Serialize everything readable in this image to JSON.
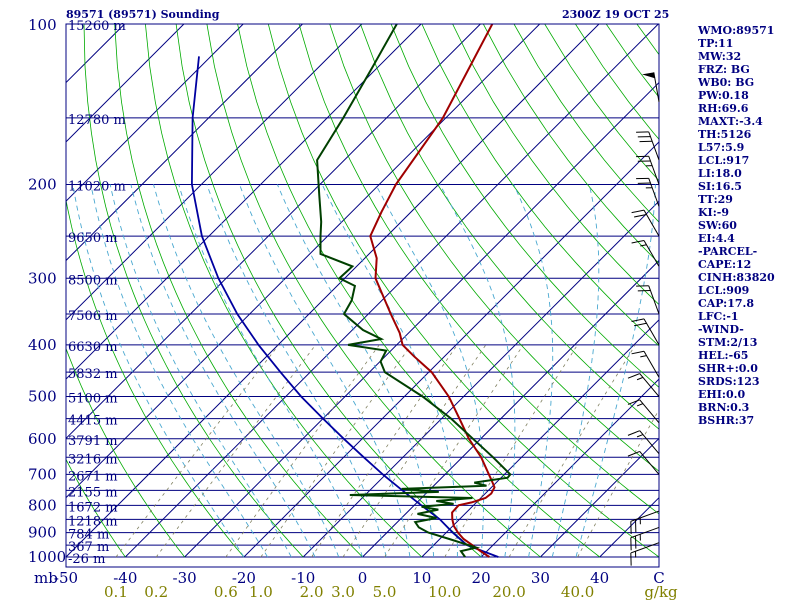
{
  "header": {
    "station_title": "89571 (89571) Sounding",
    "time_label": "2300Z 19 OCT 25"
  },
  "indices": [
    "WMO:89571",
    "TP:11",
    "MW:32",
    "FRZ: BG",
    "WB0: BG",
    "PW:0.18",
    "RH:69.6",
    "MAXT:-3.4",
    "TH:5126",
    "L57:5.9",
    "LCL:917",
    "LI:18.0",
    "SI:16.5",
    "TT:29",
    "KI:-9",
    "SW:60",
    "EI:4.4",
    "-PARCEL-",
    "CAPE:12",
    "CINH:83820",
    "LCL:909",
    "CAP:17.8",
    "LFC:-1",
    "-WIND-",
    "STM:2/13",
    "HEL:-65",
    "SHR+:0.0",
    "SRDS:123",
    "EHI:0.0",
    "BRN:0.3",
    "BSHR:37"
  ],
  "colors": {
    "isobar": "#000080",
    "isotherm": "#000080",
    "dry_adiabat": "#00aa00",
    "moist_adiabat": "#4aa8d0",
    "mixing_ratio": "#808060",
    "temperature": "#a00000",
    "dewpoint": "#004000",
    "parcel": "#0000a0",
    "frame": "#000080",
    "text": "#000080",
    "mixing_label": "#808000"
  },
  "chart_data": {
    "type": "skew-t",
    "title": "89571 (89571) Sounding",
    "pressure_range_hpa": [
      1000,
      100
    ],
    "temperature_range_c": [
      -50,
      50
    ],
    "pressure_ticks": [
      "100",
      "200",
      "300",
      "400",
      "500",
      "600",
      "700",
      "800",
      "900",
      "1000"
    ],
    "pressure_axis_unit": "mb",
    "temperature_ticks": [
      "-50",
      "-40",
      "-30",
      "-20",
      "-10",
      "0",
      "10",
      "20",
      "30",
      "40",
      "C"
    ],
    "mixing_ratio_ticks": [
      "0.1",
      "0.2",
      "0.6",
      "1.0",
      "2.0",
      "3.0",
      "5.0",
      "10.0",
      "20.0",
      "40.0",
      "g/kg"
    ],
    "height_labels": [
      {
        "p": 100,
        "label": "15260 m"
      },
      {
        "p": 150,
        "label": "12780 m"
      },
      {
        "p": 200,
        "label": "11020 m"
      },
      {
        "p": 250,
        "label": "9650 m"
      },
      {
        "p": 300,
        "label": "8500 m"
      },
      {
        "p": 350,
        "label": "7506 m"
      },
      {
        "p": 400,
        "label": "6630 m"
      },
      {
        "p": 450,
        "label": "5832 m"
      },
      {
        "p": 500,
        "label": "5100 m"
      },
      {
        "p": 550,
        "label": "4415 m"
      },
      {
        "p": 600,
        "label": "3791 m"
      },
      {
        "p": 650,
        "label": "3216 m"
      },
      {
        "p": 700,
        "label": "2671 m"
      },
      {
        "p": 750,
        "label": "2155 m"
      },
      {
        "p": 800,
        "label": "1672 m"
      },
      {
        "p": 850,
        "label": "1218 m"
      },
      {
        "p": 900,
        "label": "784 m"
      },
      {
        "p": 950,
        "label": "367 m"
      },
      {
        "p": 1000,
        "label": "-26 m"
      }
    ],
    "temperature_profile": [
      {
        "p": 1000,
        "t": 21.4
      },
      {
        "p": 975,
        "t": 18.9
      },
      {
        "p": 950,
        "t": 16.5
      },
      {
        "p": 925,
        "t": 14.0
      },
      {
        "p": 900,
        "t": 12.0
      },
      {
        "p": 875,
        "t": 10.2
      },
      {
        "p": 850,
        "t": 8.8
      },
      {
        "p": 825,
        "t": 7.6
      },
      {
        "p": 800,
        "t": 7.5
      },
      {
        "p": 790,
        "t": 9.2
      },
      {
        "p": 775,
        "t": 10.8
      },
      {
        "p": 760,
        "t": 11.0
      },
      {
        "p": 740,
        "t": 10.5
      },
      {
        "p": 720,
        "t": 9.0
      },
      {
        "p": 700,
        "t": 7.4
      },
      {
        "p": 650,
        "t": 3.2
      },
      {
        "p": 600,
        "t": -2.0
      },
      {
        "p": 550,
        "t": -7.0
      },
      {
        "p": 500,
        "t": -12.5
      },
      {
        "p": 450,
        "t": -19.5
      },
      {
        "p": 420,
        "t": -25.2
      },
      {
        "p": 400,
        "t": -29.0
      },
      {
        "p": 380,
        "t": -31.5
      },
      {
        "p": 350,
        "t": -36.2
      },
      {
        "p": 300,
        "t": -44.8
      },
      {
        "p": 275,
        "t": -48.0
      },
      {
        "p": 250,
        "t": -52.8
      },
      {
        "p": 225,
        "t": -55.0
      },
      {
        "p": 200,
        "t": -57.2
      },
      {
        "p": 150,
        "t": -60.5
      },
      {
        "p": 100,
        "t": -68.0
      }
    ],
    "dewpoint_profile": [
      {
        "p": 1000,
        "td": 17.3
      },
      {
        "p": 975,
        "td": 15.6
      },
      {
        "p": 960,
        "td": 17.6
      },
      {
        "p": 925,
        "td": 11.6
      },
      {
        "p": 900,
        "td": 7.0
      },
      {
        "p": 880,
        "td": 4.5
      },
      {
        "p": 860,
        "td": 3.0
      },
      {
        "p": 845,
        "td": 5.9
      },
      {
        "p": 830,
        "td": 2.0
      },
      {
        "p": 815,
        "td": 4.8
      },
      {
        "p": 805,
        "td": 1.5
      },
      {
        "p": 795,
        "td": 6.4
      },
      {
        "p": 785,
        "td": 3.0
      },
      {
        "p": 775,
        "td": 8.6
      },
      {
        "p": 765,
        "td": -12.6
      },
      {
        "p": 755,
        "td": 1.9
      },
      {
        "p": 745,
        "td": -4.9
      },
      {
        "p": 735,
        "td": 8.9
      },
      {
        "p": 725,
        "td": 6.3
      },
      {
        "p": 710,
        "td": 11.1
      },
      {
        "p": 700,
        "td": 11.0
      },
      {
        "p": 650,
        "td": 5.2
      },
      {
        "p": 600,
        "td": -1.3
      },
      {
        "p": 550,
        "td": -8.4
      },
      {
        "p": 500,
        "td": -16.9
      },
      {
        "p": 450,
        "td": -27.4
      },
      {
        "p": 430,
        "td": -29.9
      },
      {
        "p": 410,
        "td": -30.8
      },
      {
        "p": 400,
        "td": -38.2
      },
      {
        "p": 390,
        "td": -33.6
      },
      {
        "p": 375,
        "td": -38.2
      },
      {
        "p": 350,
        "td": -44.1
      },
      {
        "p": 330,
        "td": -45.1
      },
      {
        "p": 310,
        "td": -47.0
      },
      {
        "p": 300,
        "td": -50.9
      },
      {
        "p": 285,
        "td": -50.7
      },
      {
        "p": 270,
        "td": -58.2
      },
      {
        "p": 250,
        "td": -61.2
      },
      {
        "p": 235,
        "td": -63.5
      },
      {
        "p": 210,
        "td": -68.2
      },
      {
        "p": 180,
        "td": -74.6
      },
      {
        "p": 150,
        "td": -77.3
      },
      {
        "p": 120,
        "td": -81.0
      },
      {
        "p": 100,
        "td": -84.1
      }
    ],
    "parcel_path": [
      {
        "p": 1000,
        "t": 22.9
      },
      {
        "p": 950,
        "t": 15.6
      },
      {
        "p": 900,
        "t": 11.1
      },
      {
        "p": 850,
        "t": 6.7
      },
      {
        "p": 800,
        "t": 1.2
      },
      {
        "p": 750,
        "t": -4.5
      },
      {
        "p": 700,
        "t": -10.5
      },
      {
        "p": 650,
        "t": -16.6
      },
      {
        "p": 600,
        "t": -23.1
      },
      {
        "p": 550,
        "t": -30.0
      },
      {
        "p": 500,
        "t": -37.4
      },
      {
        "p": 450,
        "t": -45.0
      },
      {
        "p": 400,
        "t": -53.3
      },
      {
        "p": 350,
        "t": -62.1
      },
      {
        "p": 300,
        "t": -71.3
      },
      {
        "p": 250,
        "t": -81.2
      },
      {
        "p": 200,
        "t": -91.6
      },
      {
        "p": 150,
        "t": -102.7
      },
      {
        "p": 115,
        "t": -112.0
      }
    ],
    "wind_barbs": [
      {
        "p": 140,
        "dir": 350,
        "kt": 50
      },
      {
        "p": 180,
        "dir": 340,
        "kt": 30
      },
      {
        "p": 200,
        "dir": 340,
        "kt": 25
      },
      {
        "p": 220,
        "dir": 340,
        "kt": 25
      },
      {
        "p": 250,
        "dir": 330,
        "kt": 20
      },
      {
        "p": 285,
        "dir": 330,
        "kt": 15
      },
      {
        "p": 350,
        "dir": 340,
        "kt": 20
      },
      {
        "p": 400,
        "dir": 330,
        "kt": 20
      },
      {
        "p": 460,
        "dir": 330,
        "kt": 15
      },
      {
        "p": 500,
        "dir": 320,
        "kt": 15
      },
      {
        "p": 560,
        "dir": 320,
        "kt": 15
      },
      {
        "p": 640,
        "dir": 320,
        "kt": 15
      },
      {
        "p": 700,
        "dir": 320,
        "kt": 10
      },
      {
        "p": 820,
        "dir": 250,
        "kt": 25
      },
      {
        "p": 880,
        "dir": 250,
        "kt": 25
      },
      {
        "p": 940,
        "dir": 250,
        "kt": 15
      }
    ]
  }
}
